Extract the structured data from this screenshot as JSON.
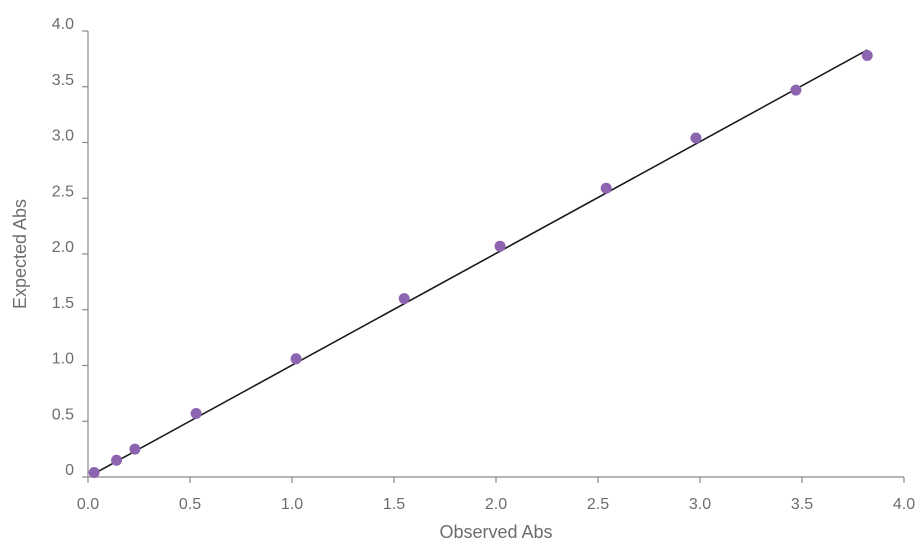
{
  "chart_data": {
    "type": "scatter",
    "title": "",
    "xlabel": "Observed Abs",
    "ylabel": "Expected Abs",
    "xlim": [
      0,
      4
    ],
    "ylim": [
      0,
      4
    ],
    "x_ticks": [
      {
        "value": 0,
        "label": "0.0"
      },
      {
        "value": 0.5,
        "label": "0.5"
      },
      {
        "value": 1,
        "label": "1.0"
      },
      {
        "value": 1.5,
        "label": "1.5"
      },
      {
        "value": 2,
        "label": "2.0"
      },
      {
        "value": 2.5,
        "label": "2.5"
      },
      {
        "value": 3,
        "label": "3.0"
      },
      {
        "value": 3.5,
        "label": "3.5"
      },
      {
        "value": 4,
        "label": "4.0"
      }
    ],
    "y_ticks": [
      {
        "value": 0,
        "label": "0"
      },
      {
        "value": 0.5,
        "label": "0.5"
      },
      {
        "value": 1,
        "label": "1.0"
      },
      {
        "value": 1.5,
        "label": "1.5"
      },
      {
        "value": 2,
        "label": "2.0"
      },
      {
        "value": 2.5,
        "label": "2.5"
      },
      {
        "value": 3,
        "label": "3.0"
      },
      {
        "value": 3.5,
        "label": "3.5"
      },
      {
        "value": 4,
        "label": "4.0"
      }
    ],
    "grid": false,
    "series": [
      {
        "color": "#8c64b0",
        "points": [
          {
            "x": 0.03,
            "y": 0.04
          },
          {
            "x": 0.14,
            "y": 0.15
          },
          {
            "x": 0.23,
            "y": 0.25
          },
          {
            "x": 0.53,
            "y": 0.57
          },
          {
            "x": 1.02,
            "y": 1.06
          },
          {
            "x": 1.55,
            "y": 1.6
          },
          {
            "x": 2.02,
            "y": 2.07
          },
          {
            "x": 2.54,
            "y": 2.59
          },
          {
            "x": 2.98,
            "y": 3.04
          },
          {
            "x": 3.47,
            "y": 3.47
          },
          {
            "x": 3.82,
            "y": 3.78
          }
        ]
      }
    ],
    "fit_line": {
      "from": {
        "x": 0.03,
        "y": 0.03
      },
      "to": {
        "x": 3.82,
        "y": 3.83
      },
      "color": "#1a1a1a"
    }
  }
}
